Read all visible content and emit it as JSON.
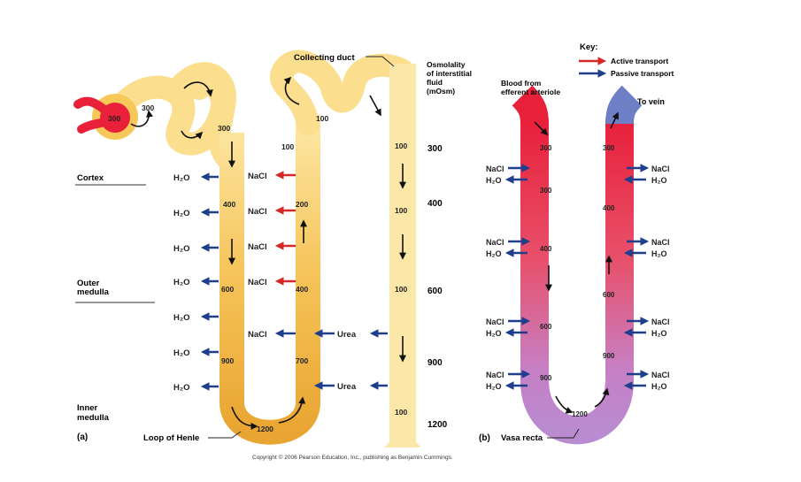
{
  "key": {
    "title": "Key:",
    "active": "Active transport",
    "passive": "Passive transport",
    "active_color": "#d62828",
    "passive_color": "#1f3f8c"
  },
  "zones": {
    "cortex": "Cortex",
    "outer": [
      "Outer",
      "medulla"
    ],
    "inner": [
      "Inner",
      "medulla"
    ]
  },
  "panel_a": {
    "label": "(a)",
    "collecting_duct": "Collecting duct",
    "loop": "Loop of Henle",
    "osm_header": [
      "Osmolality",
      "of interstitial",
      "fluid",
      "(mOsm)"
    ],
    "osm_scale": [
      "300",
      "400",
      "600",
      "900",
      "1200"
    ],
    "glomerulus_value": "300",
    "capsule_value": "300",
    "tubule_values": {
      "pct": "300",
      "desc1": "400",
      "desc2": "600",
      "desc3": "900",
      "bottom": "1200",
      "asc1": "700",
      "asc2": "400",
      "asc3": "200",
      "asc4": "100",
      "dct": "100"
    },
    "duct_values": [
      "100",
      "100",
      "100",
      "100"
    ],
    "h2o": "H₂O",
    "nacl": "NaCl",
    "urea": "Urea"
  },
  "panel_b": {
    "label": "(b)",
    "vasa_recta": "Vasa recta",
    "blood_from": [
      "Blood from",
      "efferent arteriole"
    ],
    "to_vein": "To vein",
    "red_values": [
      "300",
      "300",
      "400",
      "600",
      "900"
    ],
    "blue_values": [
      "300",
      "400",
      "600",
      "900"
    ],
    "bottom_value": "1200",
    "nacl": "NaCl",
    "h2o": "H₂O"
  },
  "copyright": "Copyright © 2006 Pearson Education, Inc., publishing as Benjamin Cummings."
}
